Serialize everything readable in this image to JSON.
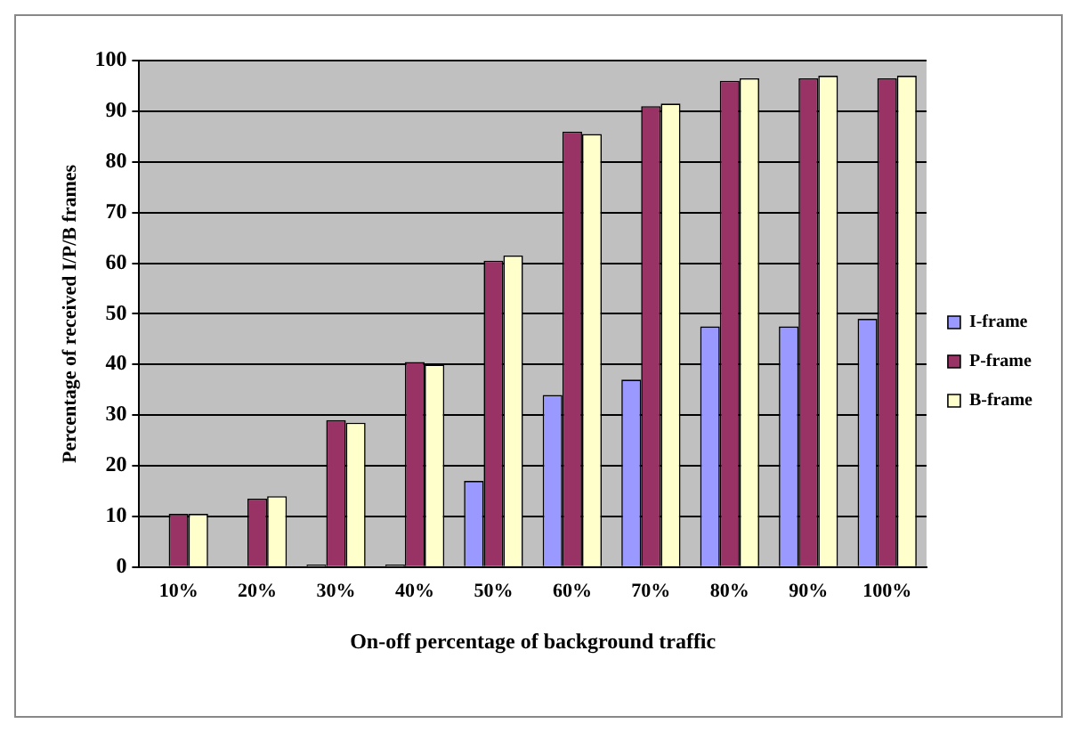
{
  "chart_data": {
    "type": "bar",
    "xlabel": "On-off percentage of background traffic",
    "ylabel": "Percentage of received I/P/B frames",
    "categories": [
      "10%",
      "20%",
      "30%",
      "40%",
      "50%",
      "60%",
      "70%",
      "80%",
      "90%",
      "100%"
    ],
    "series": [
      {
        "name": "I-frame",
        "color": "#9999ff",
        "values": [
          0,
          0,
          0.5,
          0.5,
          17,
          34,
          37,
          47.5,
          47.5,
          49
        ]
      },
      {
        "name": "P-frame",
        "color": "#993366",
        "values": [
          10.5,
          13.5,
          29,
          40.5,
          60.5,
          86,
          91,
          96,
          96.5,
          96.5
        ]
      },
      {
        "name": "B-frame",
        "color": "#ffffcc",
        "values": [
          10.5,
          14,
          28.5,
          40,
          61.5,
          85.5,
          91.5,
          96.5,
          97,
          97
        ]
      }
    ],
    "ylim": [
      0,
      100
    ],
    "yticks": [
      0,
      10,
      20,
      30,
      40,
      50,
      60,
      70,
      80,
      90,
      100
    ],
    "grid": "y",
    "legend": "right"
  }
}
